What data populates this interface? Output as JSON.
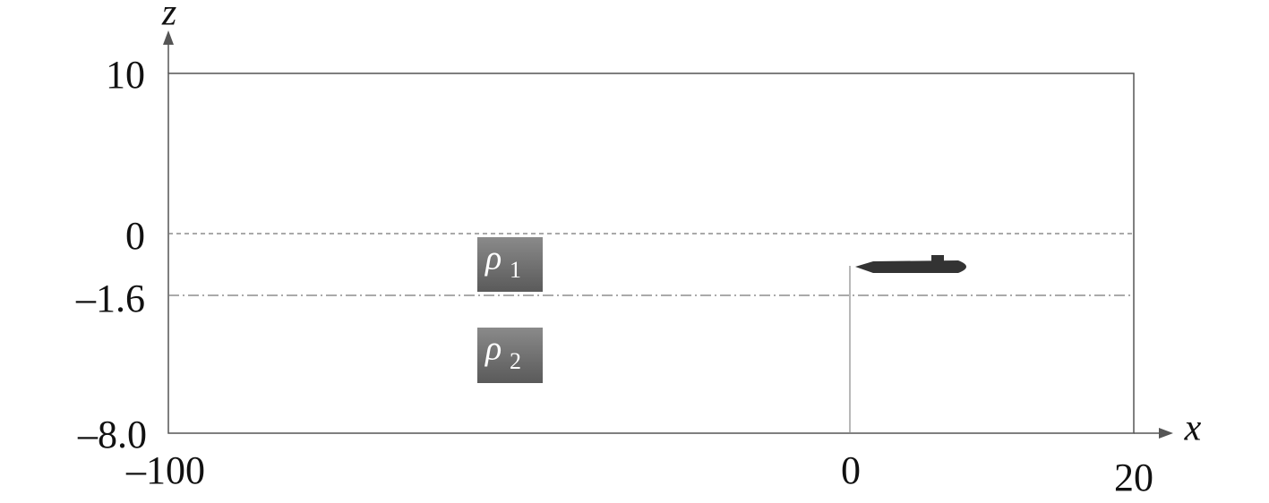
{
  "axes": {
    "vertical": "z",
    "horizontal": "x"
  },
  "z_ticks": [
    "10",
    "0",
    "–1.6",
    "–8.0"
  ],
  "x_ticks": [
    "–100",
    "0",
    "20"
  ],
  "layers": [
    {
      "symbol": "ρ",
      "subscript": "1"
    },
    {
      "symbol": "ρ",
      "subscript": "2"
    }
  ]
}
